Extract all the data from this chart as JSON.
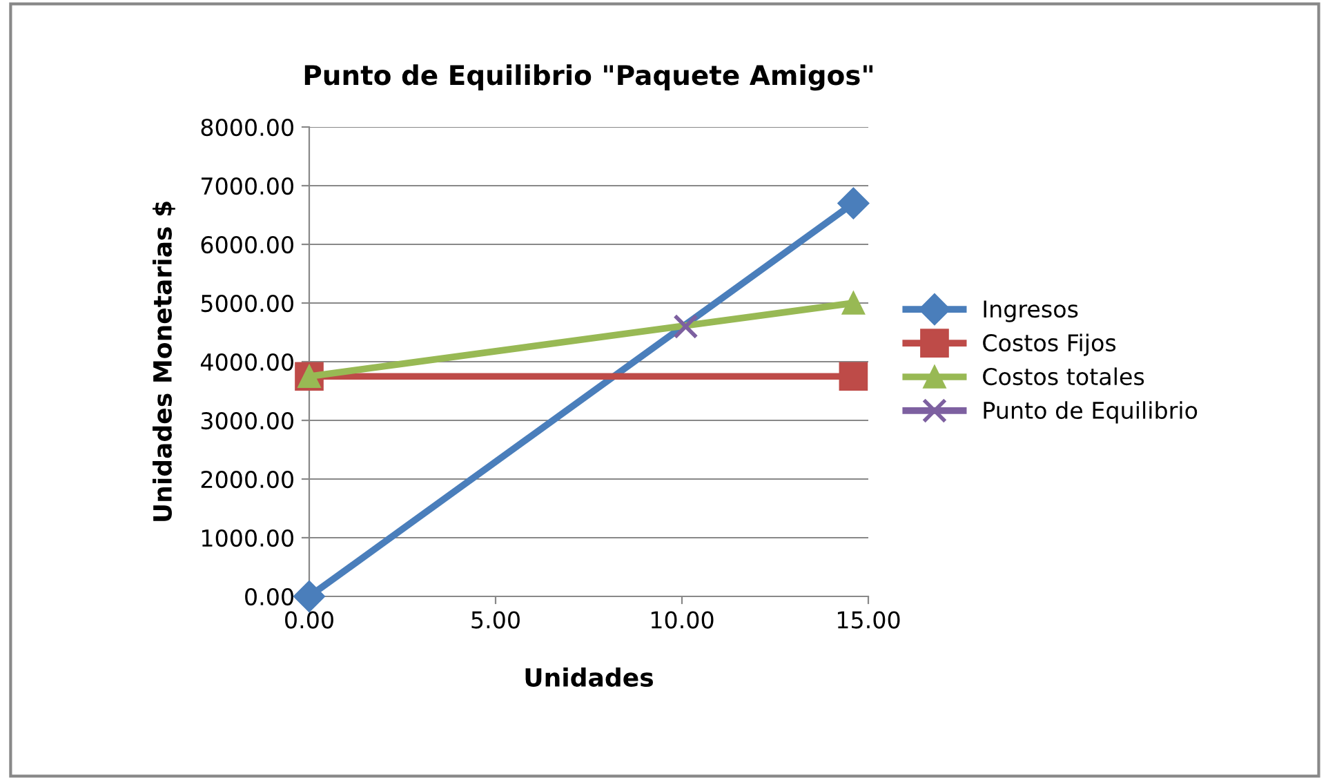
{
  "chart_data": {
    "type": "line",
    "title": "Punto de Equilibrio \"Paquete Amigos\"",
    "xlabel": "Unidades",
    "ylabel": "Unidades Monetarias $",
    "series": [
      {
        "name": "Ingresos",
        "color": "#4a7ebb",
        "x": [
          0,
          14.6
        ],
        "values": [
          0,
          6700
        ],
        "marker": "diamond"
      },
      {
        "name": "Costos Fijos",
        "color": "#be4b48",
        "x": [
          0,
          14.6
        ],
        "values": [
          3750,
          3750
        ],
        "marker": "square"
      },
      {
        "name": "Costos totales",
        "color": "#98b954",
        "x": [
          0,
          14.6
        ],
        "values": [
          3750,
          5000
        ],
        "marker": "triangle"
      },
      {
        "name": "Punto de Equilibrio",
        "color": "#7d60a0",
        "x": [
          10.1
        ],
        "values": [
          4600
        ],
        "marker": "cross"
      }
    ],
    "xlim": [
      0,
      15
    ],
    "xticks": [
      {
        "value": 0,
        "label": "0.00"
      },
      {
        "value": 5,
        "label": "5.00"
      },
      {
        "value": 10,
        "label": "10.00"
      },
      {
        "value": 15,
        "label": "15.00"
      }
    ],
    "ylim": [
      0,
      8000
    ],
    "yticks": [
      {
        "value": 0,
        "label": "0.00"
      },
      {
        "value": 1000,
        "label": "1000.00"
      },
      {
        "value": 2000,
        "label": "2000.00"
      },
      {
        "value": 3000,
        "label": "3000.00"
      },
      {
        "value": 4000,
        "label": "4000.00"
      },
      {
        "value": 5000,
        "label": "5000.00"
      },
      {
        "value": 6000,
        "label": "6000.00"
      },
      {
        "value": 7000,
        "label": "7000.00"
      },
      {
        "value": 8000,
        "label": "8000.00"
      }
    ],
    "grid": "y",
    "legend": "right",
    "line_style": "solid"
  }
}
